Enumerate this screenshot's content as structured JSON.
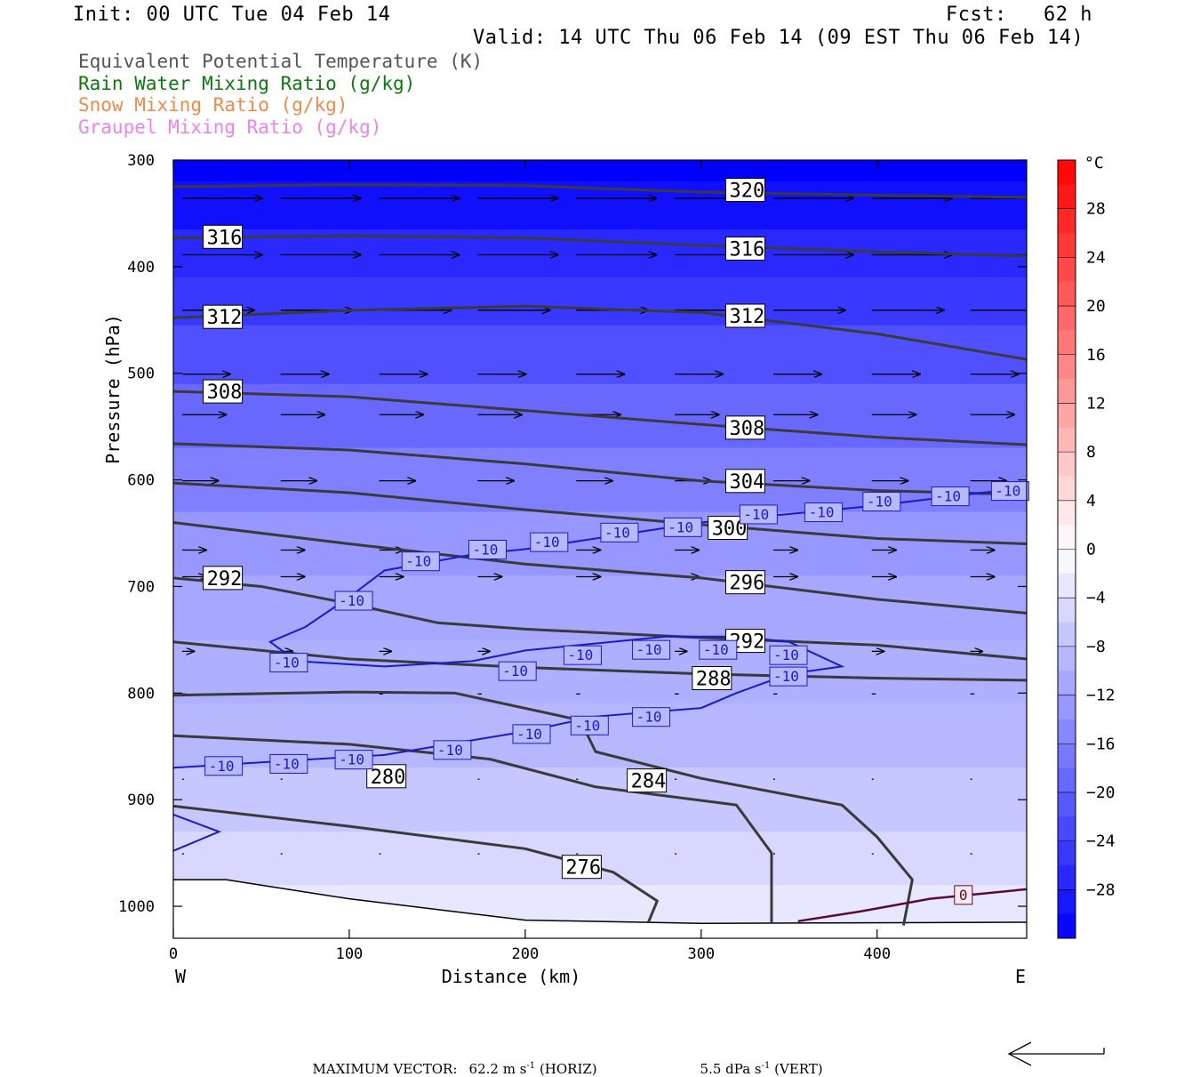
{
  "header": {
    "init": "Init: 00 UTC Tue 04 Feb 14",
    "fcst": "Fcst:   62 h",
    "valid": "Valid: 14 UTC Thu 06 Feb 14 (09 EST Thu 06 Feb 14)"
  },
  "legend": [
    {
      "label": "Equivalent Potential Temperature (K)",
      "color": "#3a3a3a"
    },
    {
      "label": "Rain Water Mixing Ratio (g/kg)",
      "color": "#0a7a0a"
    },
    {
      "label": "Snow Mixing Ratio (g/kg)",
      "color": "#f08a4a"
    },
    {
      "label": "Graupel Mixing Ratio (g/kg)",
      "color": "#ee82ee"
    }
  ],
  "footer": {
    "max_vector_label": "MAXIMUM VECTOR:",
    "horiz_value": "62.2 m s",
    "horiz_exp": "-1",
    "horiz_unit": "(HORIZ)",
    "vert_value": "5.5 dPa s",
    "vert_exp": "-1",
    "vert_unit": "(VERT)"
  },
  "chart_data": {
    "type": "contour-cross-section",
    "xlabel": "Distance (km)",
    "ylabel": "Pressure (hPa)",
    "xlim": [
      0,
      485
    ],
    "ylim": [
      1030,
      300
    ],
    "x_ticks": [
      "0",
      "100",
      "200",
      "300",
      "400"
    ],
    "x_tick_values": [
      0,
      100,
      200,
      300,
      400
    ],
    "y_ticks": [
      "300",
      "400",
      "500",
      "600",
      "700",
      "800",
      "900",
      "1000"
    ],
    "y_tick_values": [
      300,
      400,
      500,
      600,
      700,
      800,
      900,
      1000
    ],
    "west_label": "W",
    "east_label": "E",
    "colorbar": {
      "unit": "°C",
      "labels": [
        "28",
        "24",
        "20",
        "16",
        "12",
        "8",
        "4",
        "0",
        "-4",
        "-8",
        "-12",
        "-16",
        "-20",
        "-24",
        "-28"
      ],
      "values": [
        28,
        24,
        20,
        16,
        12,
        8,
        4,
        0,
        -4,
        -8,
        -12,
        -16,
        -20,
        -24,
        -28
      ],
      "range": [
        -32,
        32
      ]
    },
    "temperature_shading": [
      {
        "p": 300,
        "t": -32
      },
      {
        "p": 340,
        "t": -30
      },
      {
        "p": 390,
        "t": -27
      },
      {
        "p": 430,
        "t": -25
      },
      {
        "p": 480,
        "t": -22
      },
      {
        "p": 540,
        "t": -19
      },
      {
        "p": 600,
        "t": -16
      },
      {
        "p": 660,
        "t": -13
      },
      {
        "p": 720,
        "t": -11
      },
      {
        "p": 780,
        "t": -10
      },
      {
        "p": 840,
        "t": -9
      },
      {
        "p": 900,
        "t": -7
      },
      {
        "p": 960,
        "t": -5
      },
      {
        "p": 1000,
        "t": -3
      },
      {
        "p": 1030,
        "t": -1
      }
    ],
    "theta_e_contours": [
      {
        "label": "320",
        "points": [
          [
            0,
            325
          ],
          [
            100,
            323
          ],
          [
            200,
            324
          ],
          [
            300,
            330
          ],
          [
            400,
            333
          ],
          [
            485,
            335
          ]
        ],
        "labels_at": [
          [
            316,
            328
          ]
        ]
      },
      {
        "label": "316",
        "points": [
          [
            0,
            373
          ],
          [
            100,
            371
          ],
          [
            200,
            373
          ],
          [
            300,
            380
          ],
          [
            400,
            386
          ],
          [
            485,
            390
          ]
        ],
        "labels_at": [
          [
            19,
            372
          ],
          [
            316,
            383
          ]
        ]
      },
      {
        "label": "312",
        "points": [
          [
            0,
            448
          ],
          [
            100,
            441
          ],
          [
            200,
            437
          ],
          [
            300,
            443
          ],
          [
            400,
            463
          ],
          [
            485,
            487
          ]
        ],
        "labels_at": [
          [
            19,
            447
          ],
          [
            316,
            446
          ]
        ]
      },
      {
        "label": "308",
        "points": [
          [
            0,
            517
          ],
          [
            100,
            522
          ],
          [
            200,
            535
          ],
          [
            300,
            548
          ],
          [
            400,
            560
          ],
          [
            485,
            567
          ]
        ],
        "labels_at": [
          [
            19,
            517
          ],
          [
            316,
            551
          ]
        ]
      },
      {
        "label": "304",
        "points": [
          [
            0,
            566
          ],
          [
            100,
            572
          ],
          [
            200,
            585
          ],
          [
            300,
            601
          ],
          [
            400,
            610
          ],
          [
            485,
            614
          ]
        ],
        "labels_at": [
          [
            316,
            601
          ]
        ]
      },
      {
        "label": "300",
        "points": [
          [
            0,
            603
          ],
          [
            100,
            612
          ],
          [
            200,
            628
          ],
          [
            300,
            642
          ],
          [
            400,
            655
          ],
          [
            485,
            660
          ]
        ],
        "labels_at": [
          [
            306,
            645
          ]
        ]
      },
      {
        "label": "296",
        "points": [
          [
            0,
            640
          ],
          [
            100,
            660
          ],
          [
            200,
            679
          ],
          [
            300,
            692
          ],
          [
            400,
            712
          ],
          [
            485,
            725
          ]
        ],
        "labels_at": [
          [
            316,
            696
          ]
        ]
      },
      {
        "label": "292",
        "points": [
          [
            0,
            692
          ],
          [
            50,
            700
          ],
          [
            100,
            716
          ],
          [
            150,
            734
          ],
          [
            200,
            740
          ],
          [
            300,
            748
          ],
          [
            400,
            755
          ],
          [
            485,
            768
          ]
        ],
        "labels_at": [
          [
            19,
            692
          ],
          [
            316,
            751
          ]
        ]
      },
      {
        "label": "288",
        "points": [
          [
            0,
            752
          ],
          [
            100,
            768
          ],
          [
            200,
            776
          ],
          [
            300,
            782
          ],
          [
            400,
            786
          ],
          [
            485,
            788
          ]
        ],
        "labels_at": [
          [
            297,
            786
          ]
        ]
      },
      {
        "label": "284",
        "points": [
          [
            0,
            802
          ],
          [
            100,
            799
          ],
          [
            160,
            800
          ],
          [
            230,
            825
          ],
          [
            235,
            838
          ],
          [
            240,
            855
          ],
          [
            300,
            880
          ],
          [
            380,
            905
          ],
          [
            400,
            935
          ],
          [
            420,
            975
          ],
          [
            415,
            1018
          ]
        ],
        "labels_at": [
          [
            260,
            882
          ]
        ]
      },
      {
        "label": "280",
        "points": [
          [
            0,
            840
          ],
          [
            100,
            848
          ],
          [
            180,
            862
          ],
          [
            240,
            888
          ],
          [
            320,
            905
          ],
          [
            340,
            950
          ],
          [
            340,
            1015
          ]
        ],
        "labels_at": [
          [
            112,
            878
          ]
        ]
      },
      {
        "label": "276",
        "points": [
          [
            0,
            906
          ],
          [
            100,
            925
          ],
          [
            200,
            946
          ],
          [
            250,
            968
          ],
          [
            275,
            995
          ],
          [
            270,
            1015
          ]
        ],
        "labels_at": [
          [
            223,
            963
          ]
        ]
      }
    ],
    "minus10_isotherm": {
      "label": "-10",
      "color": "#1a1acc",
      "upper": [
        [
          0,
          870
        ],
        [
          20,
          868
        ],
        [
          80,
          862
        ],
        [
          120,
          858
        ],
        [
          200,
          836
        ],
        [
          240,
          822
        ],
        [
          300,
          814
        ],
        [
          320,
          800
        ],
        [
          350,
          782
        ],
        [
          380,
          775
        ],
        [
          350,
          752
        ],
        [
          320,
          747
        ],
        [
          280,
          747
        ],
        [
          200,
          760
        ],
        [
          170,
          770
        ],
        [
          120,
          775
        ],
        [
          70,
          770
        ],
        [
          55,
          752
        ],
        [
          75,
          738
        ],
        [
          100,
          710
        ],
        [
          120,
          685
        ],
        [
          170,
          670
        ],
        [
          200,
          665
        ],
        [
          240,
          655
        ],
        [
          300,
          640
        ],
        [
          350,
          632
        ],
        [
          400,
          624
        ],
        [
          450,
          614
        ],
        [
          485,
          607
        ]
      ],
      "lower_left": [
        [
          0,
          914
        ],
        [
          26,
          930
        ],
        [
          0,
          948
        ]
      ],
      "labels_at": [
        [
          19,
          868
        ],
        [
          56,
          866
        ],
        [
          93,
          862
        ],
        [
          149,
          853
        ],
        [
          194,
          838
        ],
        [
          227,
          830
        ],
        [
          262,
          822
        ],
        [
          340,
          784
        ],
        [
          56,
          771
        ],
        [
          186,
          779
        ],
        [
          223,
          764
        ],
        [
          262,
          759
        ],
        [
          300,
          759
        ],
        [
          340,
          764
        ],
        [
          93,
          713
        ],
        [
          131,
          676
        ],
        [
          169,
          665
        ],
        [
          204,
          658
        ],
        [
          244,
          649
        ],
        [
          280,
          644
        ],
        [
          323,
          632
        ],
        [
          360,
          630
        ],
        [
          393,
          620
        ],
        [
          432,
          615
        ],
        [
          466,
          610
        ]
      ]
    },
    "zero_isotherm": {
      "label": "0",
      "color": "#5a0a3a",
      "points": [
        [
          355,
          1014
        ],
        [
          390,
          1005
        ],
        [
          430,
          993
        ],
        [
          485,
          984
        ]
      ],
      "labels_at": [
        [
          445,
          989
        ]
      ]
    },
    "wind_vectors": [
      {
        "p": 335,
        "u": 1.0
      },
      {
        "p": 388,
        "u": 1.0
      },
      {
        "p": 440,
        "u": 0.9
      },
      {
        "p": 500,
        "u": 0.6
      },
      {
        "p": 538,
        "u": 0.55
      },
      {
        "p": 600,
        "u": 0.45
      },
      {
        "p": 665,
        "u": 0.3
      },
      {
        "p": 690,
        "u": 0.3
      },
      {
        "p": 760,
        "u": 0.15
      },
      {
        "p": 800,
        "u": 0.05
      },
      {
        "p": 880,
        "u": 0.02
      },
      {
        "p": 950,
        "u": 0.02
      }
    ]
  }
}
